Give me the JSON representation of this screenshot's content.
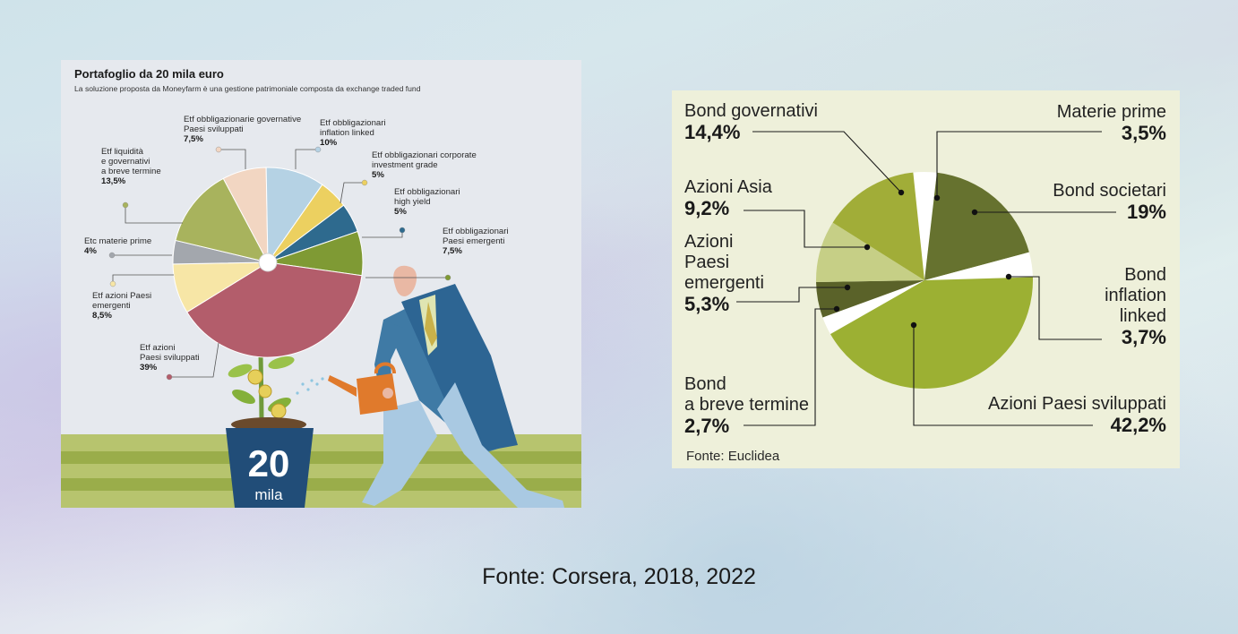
{
  "caption": "Fonte: Corsera, 2018, 2022",
  "chart_data": [
    {
      "type": "pie",
      "title": "Portafoglio da 20 mila euro",
      "subtitle": "La soluzione proposta da Moneyfarm è una gestione patrimoniale composta da exchange traded fund",
      "center_text": "20",
      "center_subtext": "mila",
      "slices": [
        {
          "label": "Etf obbligazionarie governative Paesi sviluppati",
          "lines": [
            "Etf obbligazionarie governative",
            "Paesi sviluppati"
          ],
          "value_text": "7,5%",
          "value": 7.5,
          "color": "#f2d6c2"
        },
        {
          "label": "Etf obbligazionari inflation linked",
          "lines": [
            "Etf obbligazionari",
            "inflation linked"
          ],
          "value_text": "10%",
          "value": 10,
          "color": "#b5d2e4"
        },
        {
          "label": "Etf obbligazionari corporate investment grade",
          "lines": [
            "Etf obbligazionari corporate",
            "investment grade"
          ],
          "value_text": "5%",
          "value": 5,
          "color": "#ecd060"
        },
        {
          "label": "Etf obbligazionari high yield",
          "lines": [
            "Etf obbligazionari",
            "high yield"
          ],
          "value_text": "5%",
          "value": 5,
          "color": "#2e6a8e"
        },
        {
          "label": "Etf obbligazionari Paesi emergenti",
          "lines": [
            "Etf obbligazionari",
            "Paesi emergenti"
          ],
          "value_text": "7,5%",
          "value": 7.5,
          "color": "#7f9a34"
        },
        {
          "label": "Etf azioni Paesi sviluppati",
          "lines": [
            "Etf azioni",
            "Paesi sviluppati"
          ],
          "value_text": "39%",
          "value": 39,
          "color": "#b35d6b"
        },
        {
          "label": "Etf azioni Paesi emergenti",
          "lines": [
            "Etf azioni Paesi",
            "emergenti"
          ],
          "value_text": "8,5%",
          "value": 8.5,
          "color": "#f7e6a6"
        },
        {
          "label": "Etc materie prime",
          "lines": [
            "Etc materie prime"
          ],
          "value_text": "4%",
          "value": 4,
          "color": "#a3a7ad"
        },
        {
          "label": "Etf liquidità e governativi a breve termine",
          "lines": [
            "Etf liquidità",
            "e governativi",
            "a breve termine"
          ],
          "value_text": "13,5%",
          "value": 13.5,
          "color": "#a8b35d"
        }
      ]
    },
    {
      "type": "pie",
      "source": "Fonte: Euclidea",
      "slices": [
        {
          "label": "Materie prime",
          "lines": [
            "Materie prime"
          ],
          "value_text": "3,5%",
          "value": 3.5,
          "color": "#ffffff"
        },
        {
          "label": "Bond societari",
          "lines": [
            "Bond societari"
          ],
          "value_text": "19%",
          "value": 19,
          "color": "#66722f"
        },
        {
          "label": "Bond inflation linked",
          "lines": [
            "Bond",
            "inflation",
            "linked"
          ],
          "value_text": "3,7%",
          "value": 3.7,
          "color": "#ffffff"
        },
        {
          "label": "Azioni Paesi sviluppati",
          "lines": [
            "Azioni Paesi sviluppati"
          ],
          "value_text": "42,2%",
          "value": 42.2,
          "color": "#9cb033"
        },
        {
          "label": "Bond a breve termine",
          "lines": [
            "Bond",
            "a breve termine"
          ],
          "value_text": "2,7%",
          "value": 2.7,
          "color": "#ffffff"
        },
        {
          "label": "Azioni Paesi emergenti",
          "lines": [
            "Azioni",
            "Paesi",
            "emergenti"
          ],
          "value_text": "5,3%",
          "value": 5.3,
          "color": "#5a6229"
        },
        {
          "label": "Azioni Asia",
          "lines": [
            "Azioni Asia"
          ],
          "value_text": "9,2%",
          "value": 9.2,
          "color": "#c6cf86"
        },
        {
          "label": "Bond governativi",
          "lines": [
            "Bond governativi"
          ],
          "value_text": "14,4%",
          "value": 14.4,
          "color": "#a1ad38"
        }
      ]
    }
  ]
}
